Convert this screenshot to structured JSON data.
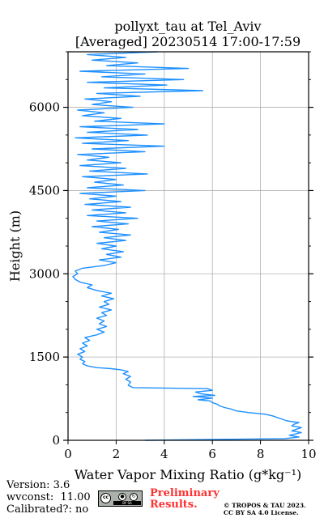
{
  "chart_data": {
    "type": "line",
    "title": "pollyxt_tau at Tel_Aviv",
    "subtitle": "[Averaged] 20230514 17:00-17:59",
    "xlabel": "Water Vapor Mixing Ratio (g*kg⁻¹)",
    "ylabel": "Height (m)",
    "xlim": [
      0,
      10
    ],
    "ylim": [
      0,
      7000
    ],
    "xticks": [
      0,
      2,
      4,
      6,
      8,
      10
    ],
    "yticks": [
      0,
      1500,
      3000,
      4500,
      6000
    ],
    "grid": true,
    "color": "#1e90ff",
    "series": [
      {
        "points": [
          [
            3.2,
            0
          ],
          [
            9.0,
            30
          ],
          [
            9.6,
            60
          ],
          [
            9.2,
            90
          ],
          [
            9.4,
            110
          ],
          [
            9.7,
            140
          ],
          [
            9.3,
            170
          ],
          [
            9.5,
            200
          ],
          [
            9.7,
            230
          ],
          [
            9.3,
            260
          ],
          [
            9.4,
            290
          ],
          [
            9.6,
            320
          ],
          [
            9.1,
            350
          ],
          [
            8.9,
            380
          ],
          [
            8.7,
            410
          ],
          [
            8.5,
            440
          ],
          [
            8.2,
            470
          ],
          [
            7.5,
            500
          ],
          [
            7.0,
            530
          ],
          [
            6.8,
            560
          ],
          [
            6.5,
            590
          ],
          [
            6.3,
            620
          ],
          [
            6.2,
            650
          ],
          [
            6.0,
            680
          ],
          [
            5.9,
            710
          ],
          [
            5.4,
            730
          ],
          [
            6.0,
            760
          ],
          [
            5.2,
            790
          ],
          [
            6.1,
            810
          ],
          [
            5.5,
            840
          ],
          [
            5.3,
            870
          ],
          [
            6.0,
            900
          ],
          [
            5.8,
            930
          ],
          [
            2.7,
            950
          ],
          [
            2.5,
            990
          ],
          [
            2.6,
            1050
          ],
          [
            2.4,
            1100
          ],
          [
            2.6,
            1150
          ],
          [
            2.3,
            1200
          ],
          [
            2.5,
            1240
          ],
          [
            2.2,
            1270
          ],
          [
            1.8,
            1290
          ],
          [
            1.2,
            1310
          ],
          [
            0.8,
            1340
          ],
          [
            0.6,
            1380
          ],
          [
            0.7,
            1420
          ],
          [
            0.5,
            1460
          ],
          [
            0.6,
            1500
          ],
          [
            0.4,
            1550
          ],
          [
            0.7,
            1600
          ],
          [
            0.5,
            1650
          ],
          [
            0.8,
            1700
          ],
          [
            0.6,
            1750
          ],
          [
            0.9,
            1800
          ],
          [
            0.7,
            1850
          ],
          [
            1.2,
            1900
          ],
          [
            1.5,
            1950
          ],
          [
            1.2,
            2000
          ],
          [
            1.6,
            2050
          ],
          [
            1.3,
            2100
          ],
          [
            1.5,
            2150
          ],
          [
            1.2,
            2200
          ],
          [
            1.6,
            2250
          ],
          [
            1.4,
            2300
          ],
          [
            1.8,
            2350
          ],
          [
            1.3,
            2400
          ],
          [
            1.7,
            2450
          ],
          [
            1.5,
            2500
          ],
          [
            1.9,
            2550
          ],
          [
            1.4,
            2600
          ],
          [
            1.8,
            2650
          ],
          [
            1.2,
            2700
          ],
          [
            0.8,
            2750
          ],
          [
            1.0,
            2800
          ],
          [
            0.5,
            2850
          ],
          [
            0.3,
            2900
          ],
          [
            0.2,
            2950
          ],
          [
            0.4,
            3000
          ],
          [
            0.3,
            3050
          ],
          [
            0.6,
            3100
          ],
          [
            1.5,
            3150
          ],
          [
            2.0,
            3200
          ],
          [
            1.3,
            3250
          ],
          [
            2.2,
            3300
          ],
          [
            1.6,
            3350
          ],
          [
            2.3,
            3400
          ],
          [
            1.4,
            3450
          ],
          [
            2.0,
            3500
          ],
          [
            1.2,
            3550
          ],
          [
            2.4,
            3600
          ],
          [
            1.5,
            3650
          ],
          [
            2.6,
            3700
          ],
          [
            1.3,
            3750
          ],
          [
            2.1,
            3800
          ],
          [
            1.0,
            3850
          ],
          [
            2.5,
            3900
          ],
          [
            1.2,
            3950
          ],
          [
            2.9,
            4000
          ],
          [
            0.8,
            4050
          ],
          [
            2.4,
            4100
          ],
          [
            1.0,
            4150
          ],
          [
            2.6,
            4200
          ],
          [
            0.7,
            4250
          ],
          [
            2.2,
            4300
          ],
          [
            0.9,
            4350
          ],
          [
            2.0,
            4400
          ],
          [
            0.5,
            4450
          ],
          [
            3.2,
            4500
          ],
          [
            0.8,
            4550
          ],
          [
            2.3,
            4600
          ],
          [
            1.1,
            4650
          ],
          [
            2.0,
            4700
          ],
          [
            0.6,
            4750
          ],
          [
            3.3,
            4800
          ],
          [
            0.9,
            4850
          ],
          [
            2.4,
            4900
          ],
          [
            0.5,
            4950
          ],
          [
            2.2,
            5000
          ],
          [
            0.8,
            5050
          ],
          [
            1.7,
            5100
          ],
          [
            0.4,
            5150
          ],
          [
            3.2,
            5200
          ],
          [
            1.0,
            5250
          ],
          [
            4.0,
            5300
          ],
          [
            0.6,
            5350
          ],
          [
            2.5,
            5400
          ],
          [
            0.3,
            5450
          ],
          [
            3.3,
            5500
          ],
          [
            0.8,
            5550
          ],
          [
            2.9,
            5600
          ],
          [
            0.5,
            5650
          ],
          [
            4.0,
            5700
          ],
          [
            1.1,
            5750
          ],
          [
            2.2,
            5800
          ],
          [
            0.6,
            5850
          ],
          [
            1.5,
            5900
          ],
          [
            0.4,
            5950
          ],
          [
            2.7,
            6000
          ],
          [
            1.0,
            6050
          ],
          [
            1.8,
            6100
          ],
          [
            0.7,
            6150
          ],
          [
            3.0,
            6200
          ],
          [
            1.2,
            6250
          ],
          [
            5.6,
            6300
          ],
          [
            1.5,
            6350
          ],
          [
            4.1,
            6400
          ],
          [
            0.8,
            6450
          ],
          [
            4.8,
            6500
          ],
          [
            1.4,
            6550
          ],
          [
            3.2,
            6600
          ],
          [
            0.5,
            6650
          ],
          [
            5.0,
            6700
          ],
          [
            1.6,
            6750
          ],
          [
            2.9,
            6800
          ],
          [
            1.0,
            6850
          ],
          [
            2.4,
            6900
          ],
          [
            0.8,
            6950
          ],
          [
            3.7,
            7000
          ]
        ]
      }
    ]
  },
  "footer": {
    "version": "Version: 3.6",
    "wvconst": "wvconst:  11.00",
    "calibrated": "Calibrated?: no",
    "preliminary_line1": "Preliminary",
    "preliminary_line2": "Results.",
    "copyright_line1": "© TROPOS & TAU 2023.",
    "copyright_line2": "CC BY SA 4.0 License.",
    "cc_logo_text": "cc",
    "cc_by": "BY",
    "cc_sa": "SA"
  }
}
